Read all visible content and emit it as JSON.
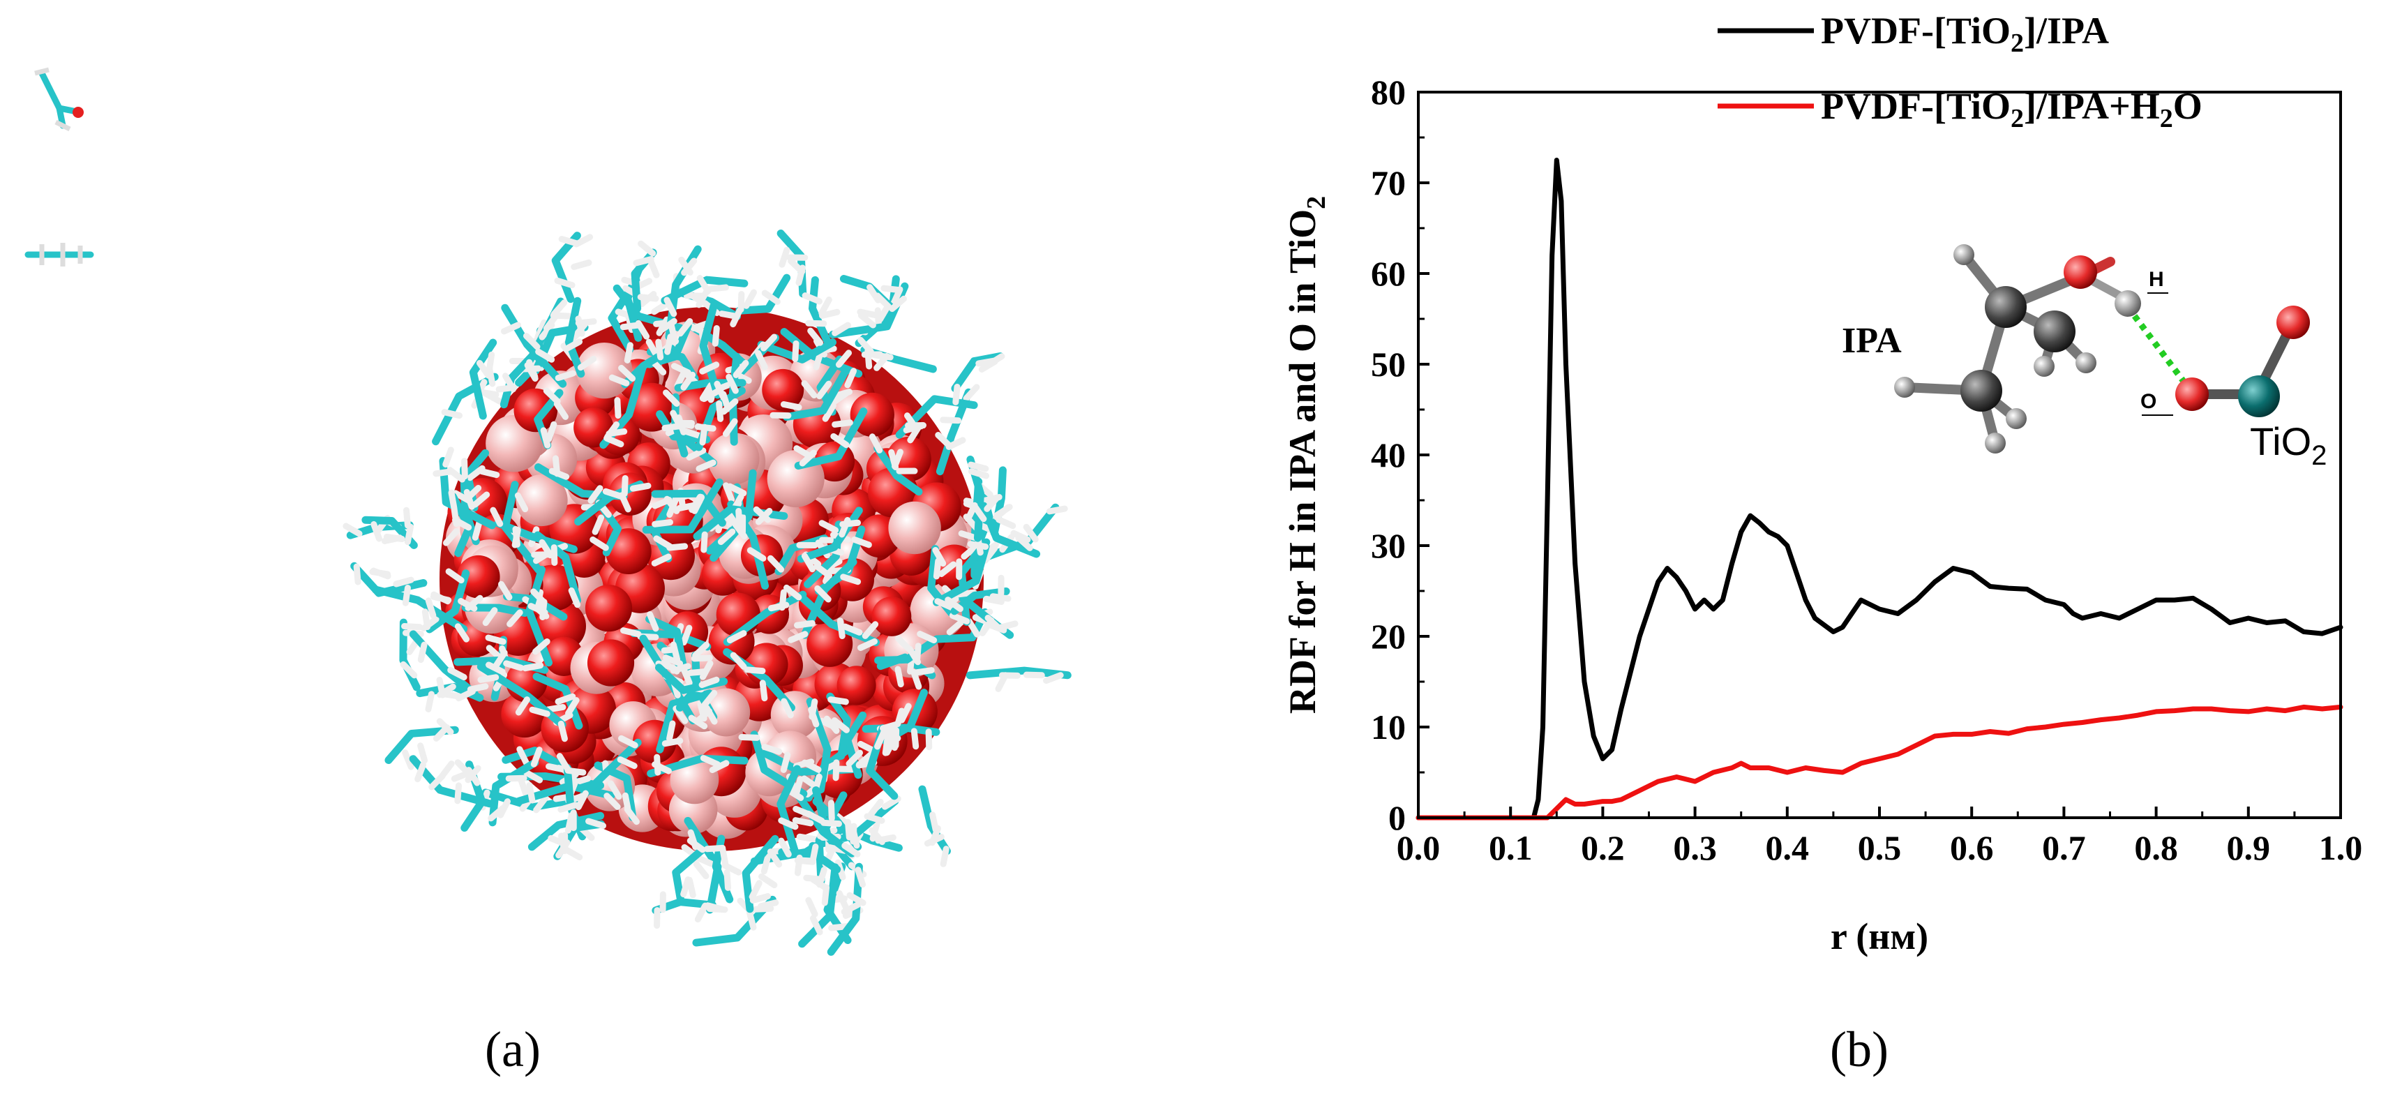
{
  "panels": {
    "a": {
      "label": "(a)"
    },
    "b": {
      "label": "(b)"
    }
  },
  "colors": {
    "series_black": "#000000",
    "series_red": "#ee1111",
    "oxygen_red": "#ee1d1d",
    "titanium_pink": "#f3b8b8",
    "ipa_cyan": "#27c3c8",
    "hydrogen_white": "#eeeeee",
    "hbond_green": "#22cc22",
    "ti_teal": "#0b6e6e"
  },
  "inset": {
    "ipa_label": "IPA",
    "tio2_label": "TiO",
    "tio2_sub": "2",
    "h_label": "H",
    "o_label": "O"
  },
  "chart_data": {
    "type": "line",
    "xlabel": "r (нм)",
    "ylabel": "RDF for H in IPA and O in TiO",
    "ylabel_sub": "2",
    "xlim": [
      0.0,
      1.0
    ],
    "ylim": [
      0,
      80
    ],
    "x_ticks": [
      "0.0",
      "0.1",
      "0.2",
      "0.3",
      "0.4",
      "0.5",
      "0.6",
      "0.7",
      "0.8",
      "0.9",
      "1.0"
    ],
    "y_ticks": [
      "0",
      "10",
      "20",
      "30",
      "40",
      "50",
      "60",
      "70",
      "80"
    ],
    "grid": false,
    "legend_position": "top-right",
    "legend": [
      {
        "pre": "PVDF-[TiO",
        "sub": "2",
        "post": "]/IPA"
      },
      {
        "pre": "PVDF-[TiO",
        "sub": "2",
        "post": "]/IPA+H",
        "sub2": "2",
        "post2": "O"
      }
    ],
    "series": [
      {
        "name": "PVDF-[TiO2]/IPA",
        "color": "#000000",
        "points": [
          [
            0.0,
            0
          ],
          [
            0.1,
            0
          ],
          [
            0.125,
            0
          ],
          [
            0.13,
            2
          ],
          [
            0.135,
            10
          ],
          [
            0.14,
            35
          ],
          [
            0.145,
            62
          ],
          [
            0.15,
            72.5
          ],
          [
            0.155,
            68
          ],
          [
            0.16,
            50
          ],
          [
            0.17,
            28
          ],
          [
            0.18,
            15
          ],
          [
            0.19,
            9
          ],
          [
            0.2,
            6.5
          ],
          [
            0.21,
            7.5
          ],
          [
            0.22,
            12
          ],
          [
            0.24,
            20
          ],
          [
            0.26,
            26
          ],
          [
            0.27,
            27.5
          ],
          [
            0.28,
            26.5
          ],
          [
            0.29,
            25
          ],
          [
            0.3,
            23
          ],
          [
            0.31,
            24
          ],
          [
            0.32,
            23
          ],
          [
            0.33,
            24
          ],
          [
            0.34,
            28
          ],
          [
            0.35,
            31.5
          ],
          [
            0.36,
            33.3
          ],
          [
            0.37,
            32.5
          ],
          [
            0.38,
            31.5
          ],
          [
            0.39,
            31
          ],
          [
            0.4,
            30
          ],
          [
            0.41,
            27
          ],
          [
            0.42,
            24
          ],
          [
            0.43,
            22
          ],
          [
            0.45,
            20.5
          ],
          [
            0.46,
            21
          ],
          [
            0.47,
            22.5
          ],
          [
            0.48,
            24
          ],
          [
            0.49,
            23.5
          ],
          [
            0.5,
            23
          ],
          [
            0.52,
            22.5
          ],
          [
            0.54,
            24
          ],
          [
            0.56,
            26
          ],
          [
            0.58,
            27.5
          ],
          [
            0.6,
            27
          ],
          [
            0.62,
            25.5
          ],
          [
            0.64,
            25.3
          ],
          [
            0.66,
            25.2
          ],
          [
            0.68,
            24
          ],
          [
            0.7,
            23.5
          ],
          [
            0.71,
            22.5
          ],
          [
            0.72,
            22
          ],
          [
            0.74,
            22.5
          ],
          [
            0.76,
            22
          ],
          [
            0.78,
            23
          ],
          [
            0.8,
            24
          ],
          [
            0.82,
            24
          ],
          [
            0.84,
            24.2
          ],
          [
            0.86,
            23
          ],
          [
            0.88,
            21.5
          ],
          [
            0.9,
            22
          ],
          [
            0.92,
            21.5
          ],
          [
            0.94,
            21.7
          ],
          [
            0.96,
            20.5
          ],
          [
            0.98,
            20.3
          ],
          [
            1.0,
            21
          ]
        ]
      },
      {
        "name": "PVDF-[TiO2]/IPA+H2O",
        "color": "#ee1111",
        "points": [
          [
            0.0,
            0
          ],
          [
            0.1,
            0
          ],
          [
            0.14,
            0
          ],
          [
            0.15,
            1
          ],
          [
            0.16,
            2
          ],
          [
            0.17,
            1.5
          ],
          [
            0.18,
            1.5
          ],
          [
            0.2,
            1.8
          ],
          [
            0.21,
            1.8
          ],
          [
            0.22,
            2
          ],
          [
            0.24,
            3
          ],
          [
            0.26,
            4
          ],
          [
            0.28,
            4.5
          ],
          [
            0.3,
            4
          ],
          [
            0.32,
            5
          ],
          [
            0.34,
            5.5
          ],
          [
            0.35,
            6
          ],
          [
            0.36,
            5.5
          ],
          [
            0.38,
            5.5
          ],
          [
            0.4,
            5
          ],
          [
            0.42,
            5.5
          ],
          [
            0.44,
            5.2
          ],
          [
            0.46,
            5
          ],
          [
            0.48,
            6
          ],
          [
            0.5,
            6.5
          ],
          [
            0.52,
            7
          ],
          [
            0.54,
            8
          ],
          [
            0.56,
            9
          ],
          [
            0.58,
            9.2
          ],
          [
            0.6,
            9.2
          ],
          [
            0.62,
            9.5
          ],
          [
            0.64,
            9.3
          ],
          [
            0.66,
            9.8
          ],
          [
            0.68,
            10
          ],
          [
            0.7,
            10.3
          ],
          [
            0.72,
            10.5
          ],
          [
            0.74,
            10.8
          ],
          [
            0.76,
            11
          ],
          [
            0.78,
            11.3
          ],
          [
            0.8,
            11.7
          ],
          [
            0.82,
            11.8
          ],
          [
            0.84,
            12
          ],
          [
            0.86,
            12
          ],
          [
            0.88,
            11.8
          ],
          [
            0.9,
            11.7
          ],
          [
            0.92,
            12
          ],
          [
            0.94,
            11.8
          ],
          [
            0.96,
            12.2
          ],
          [
            0.98,
            12
          ],
          [
            1.0,
            12.2
          ]
        ]
      }
    ]
  }
}
